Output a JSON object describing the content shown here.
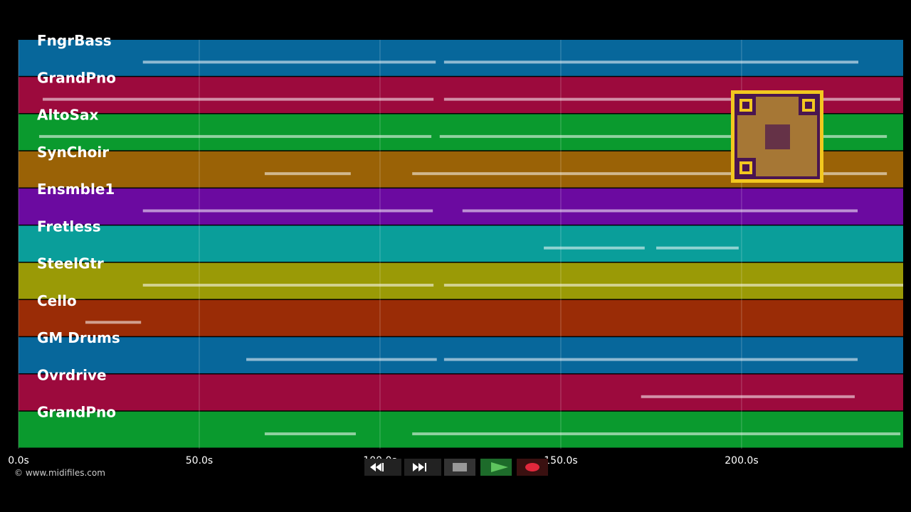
{
  "chart_data": {
    "type": "pianoroll",
    "xlim": [
      0,
      244.7
    ],
    "xticks": [
      {
        "value": 0,
        "label": "0.0s"
      },
      {
        "value": 50,
        "label": "50.0s"
      },
      {
        "value": 100,
        "label": "100.0s"
      },
      {
        "value": 150,
        "label": "150.0s"
      },
      {
        "value": 200,
        "label": "200.0s"
      }
    ],
    "grid": true,
    "credit": "© www.midifiles.com",
    "tracks": [
      {
        "name": "FngrBass",
        "color": "#07679b",
        "spans": [
          [
            34.4,
            115.4
          ],
          [
            117.7,
            232.3
          ]
        ]
      },
      {
        "name": "GrandPno",
        "color": "#9c0a3d",
        "spans": [
          [
            6.7,
            114.8
          ],
          [
            117.7,
            243.9
          ]
        ]
      },
      {
        "name": "AltoSax",
        "color": "#0a9a2e",
        "spans": [
          [
            5.7,
            114.2
          ],
          [
            116.5,
            240.2
          ]
        ]
      },
      {
        "name": "SynChoir",
        "color": "#9a6206",
        "spans": [
          [
            68.1,
            91.9
          ],
          [
            108.9,
            240.2
          ]
        ]
      },
      {
        "name": "Ensmble1",
        "color": "#6b0aa0",
        "spans": [
          [
            34.4,
            114.6
          ],
          [
            122.8,
            232.1
          ]
        ]
      },
      {
        "name": "Fretless",
        "color": "#0a9e9a",
        "spans": [
          [
            145.3,
            173.2
          ],
          [
            176.4,
            199.2
          ]
        ]
      },
      {
        "name": "SteelGtr",
        "color": "#9a9a06",
        "spans": [
          [
            34.4,
            114.8
          ],
          [
            117.7,
            244.7
          ]
        ]
      },
      {
        "name": "Cello",
        "color": "#9a2c06",
        "spans": [
          [
            18.5,
            33.9
          ]
        ]
      },
      {
        "name": "GM Drums",
        "color": "#07679b",
        "spans": [
          [
            63.0,
            115.7
          ],
          [
            117.7,
            232.1
          ]
        ]
      },
      {
        "name": "Ovrdrive",
        "color": "#9c0a3d",
        "spans": [
          [
            172.2,
            231.3
          ]
        ]
      },
      {
        "name": "GrandPno",
        "color": "#0a9a2e",
        "spans": [
          [
            68.1,
            93.3
          ],
          [
            108.9,
            243.9
          ]
        ]
      }
    ]
  }
}
